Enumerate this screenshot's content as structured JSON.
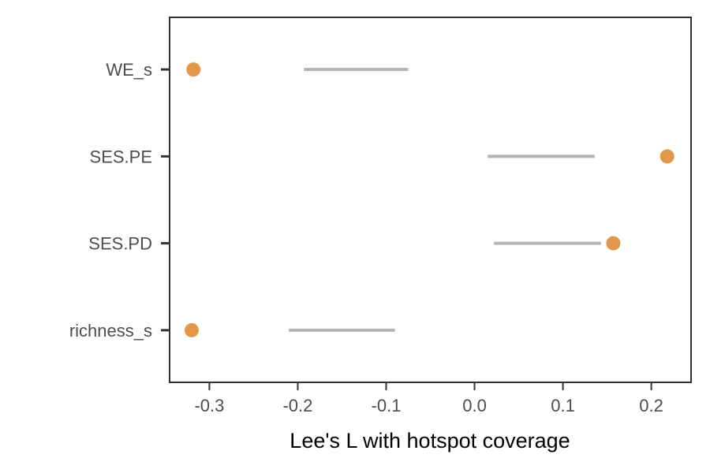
{
  "chart_data": {
    "type": "scatter",
    "title": "",
    "xlabel": "Lee's L with hotspot coverage",
    "ylabel": "",
    "xlim": [
      -0.345,
      0.245
    ],
    "xticks": [
      -0.3,
      -0.2,
      -0.1,
      0.0,
      0.1,
      0.2
    ],
    "xtick_labels": [
      "-0.3",
      "-0.2",
      "-0.1",
      "0.0",
      "0.1",
      "0.2"
    ],
    "categories": [
      "WE_s",
      "SES.PE",
      "SES.PD",
      "richness_s"
    ],
    "points": [
      -0.318,
      0.218,
      0.157,
      -0.32
    ],
    "ranges": [
      [
        -0.193,
        -0.075
      ],
      [
        0.015,
        0.136
      ],
      [
        0.022,
        0.143
      ],
      [
        -0.21,
        -0.09
      ]
    ],
    "grid": false,
    "legend": "none",
    "colors": {
      "point": "#E3974A",
      "range": "#B3B3B3",
      "axis": "#333333"
    }
  }
}
